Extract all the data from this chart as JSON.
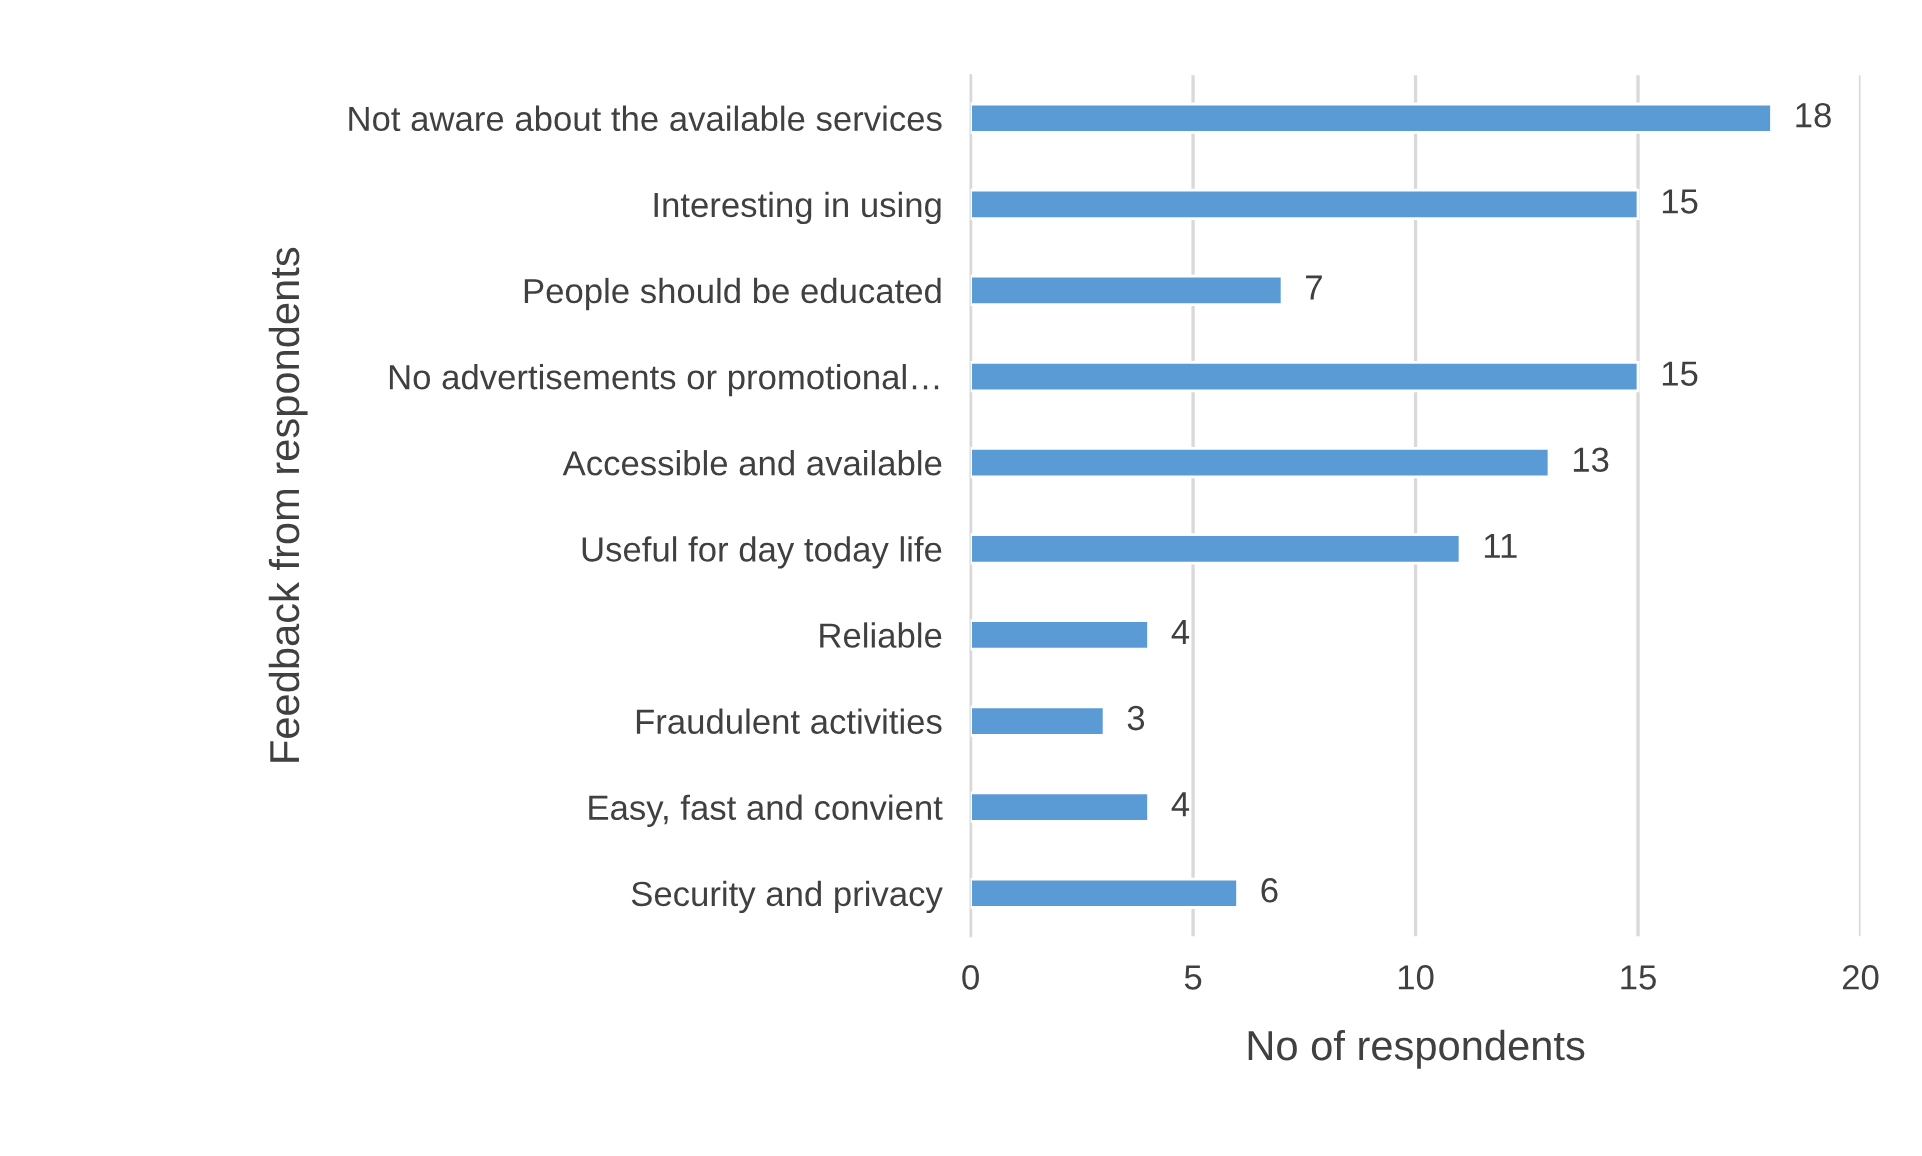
{
  "chart_data": {
    "type": "bar",
    "orientation": "horizontal",
    "xlabel": "No of respondents",
    "ylabel": "Feedback from respondents",
    "categories": [
      "Not aware about the available services",
      "Interesting in using",
      "People should be educated",
      "No advertisements or promotional…",
      "Accessible and available",
      "Useful for day today life",
      "Reliable",
      "Fraudulent activities",
      "Easy, fast and convient",
      "Security and privacy"
    ],
    "values": [
      18,
      15,
      7,
      15,
      13,
      11,
      4,
      3,
      4,
      6
    ],
    "color": "#5b9bd5",
    "xlim": [
      0,
      20
    ],
    "xticks": [
      0,
      5,
      10,
      15,
      20
    ],
    "grid": "x",
    "data_labels": true
  }
}
